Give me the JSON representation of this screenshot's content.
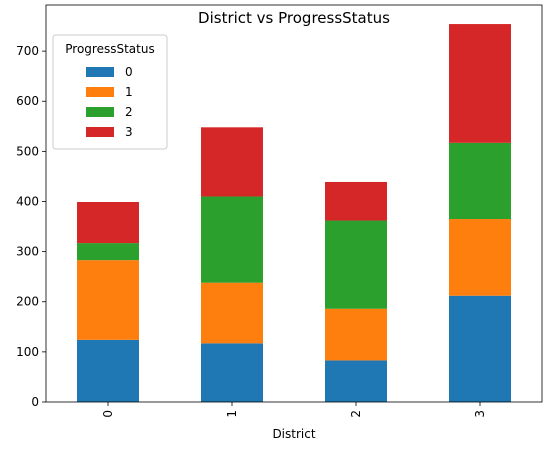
{
  "chart_data": {
    "type": "bar",
    "stacked": true,
    "title": "District vs ProgressStatus",
    "xlabel": "District",
    "ylabel": "",
    "categories": [
      "0",
      "1",
      "2",
      "3"
    ],
    "series": [
      {
        "name": "0",
        "color": "#1f77b4",
        "values": [
          124,
          117,
          83,
          212
        ]
      },
      {
        "name": "1",
        "color": "#ff7f0e",
        "values": [
          159,
          121,
          103,
          153
        ]
      },
      {
        "name": "2",
        "color": "#2ca02c",
        "values": [
          34,
          172,
          176,
          152
        ]
      },
      {
        "name": "3",
        "color": "#d62728",
        "values": [
          82,
          138,
          77,
          237
        ]
      }
    ],
    "yticks": [
      "0",
      "100",
      "200",
      "300",
      "400",
      "500",
      "600",
      "700"
    ],
    "ylim": [
      0,
      792
    ],
    "legend_title": "ProgressStatus",
    "legend_position": "top-left",
    "grid": false
  }
}
